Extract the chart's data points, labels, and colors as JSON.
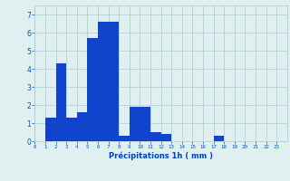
{
  "title": "",
  "xlabel": "Précipitations 1h ( mm )",
  "ylabel": "",
  "bar_color": "#1144cc",
  "background_color": "#e0f0f0",
  "grid_color": "#aacccc",
  "tick_color": "#0055cc",
  "label_color": "#0044bb",
  "xlim": [
    0,
    24
  ],
  "ylim": [
    0,
    7.5
  ],
  "yticks": [
    0,
    1,
    2,
    3,
    4,
    5,
    6,
    7
  ],
  "xticks": [
    0,
    1,
    2,
    3,
    4,
    5,
    6,
    7,
    8,
    9,
    10,
    11,
    12,
    13,
    14,
    15,
    16,
    17,
    18,
    19,
    20,
    21,
    22,
    23
  ],
  "values": [
    0,
    1.3,
    4.3,
    1.3,
    1.6,
    5.7,
    6.6,
    6.6,
    0.3,
    1.9,
    1.9,
    0.5,
    0.4,
    0,
    0,
    0,
    0,
    0.3,
    0,
    0,
    0,
    0,
    0,
    0
  ]
}
